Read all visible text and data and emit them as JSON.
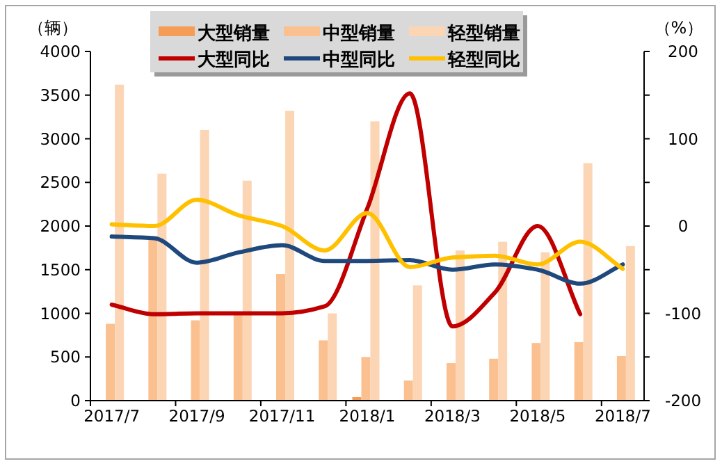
{
  "chart_data": {
    "type": "bar",
    "ylabel": "（辆）",
    "y2label": "（%）",
    "categories": [
      "2017/7",
      null,
      "2017/9",
      null,
      "2017/11",
      null,
      "2018/1",
      null,
      "2018/3",
      null,
      "2018/5",
      null,
      "2018/7"
    ],
    "ylim": [
      0,
      4000
    ],
    "yticks": [
      0,
      500,
      1000,
      1500,
      2000,
      2500,
      3000,
      3500,
      4000
    ],
    "y2lim": [
      -200,
      200
    ],
    "y2ticks": [
      -200,
      {
        "value": -150,
        "label": null
      },
      -100,
      {
        "value": -50,
        "label": null
      },
      0,
      {
        "value": 50,
        "label": null
      },
      100,
      {
        "value": 150,
        "label": null
      },
      200
    ],
    "legend": "top",
    "series": [
      {
        "name": "大型销量",
        "color": "#f59d56",
        "values": [
          0,
          0,
          0,
          0,
          0,
          0,
          40,
          0,
          0,
          0,
          0,
          0,
          0
        ]
      },
      {
        "name": "中型销量",
        "color": "#fac090",
        "values": [
          880,
          1850,
          920,
          1000,
          1450,
          690,
          500,
          230,
          430,
          480,
          660,
          670,
          510
        ]
      },
      {
        "name": "轻型销量",
        "color": "#fcd5b5",
        "values": [
          3620,
          2600,
          3100,
          2520,
          3320,
          1000,
          3200,
          1320,
          1720,
          1820,
          1700,
          2720,
          1770
        ]
      },
      {
        "name": "大型同比",
        "type": "line",
        "axis": "y2",
        "color": "#c00000",
        "values": [
          -90,
          -101,
          -100,
          -100,
          -100,
          -92,
          20,
          152,
          -115,
          -76,
          0,
          -101,
          null
        ]
      },
      {
        "name": "中型同比",
        "type": "line",
        "axis": "y2",
        "color": "#1f497d",
        "values": [
          -12,
          -14,
          -42,
          -30,
          -22,
          -40,
          -40,
          -39,
          -50,
          -44,
          -50,
          -66,
          -44
        ]
      },
      {
        "name": "轻型同比",
        "type": "line",
        "axis": "y2",
        "color": "#ffc000",
        "values": [
          2,
          0,
          30,
          12,
          0,
          -28,
          15,
          -47,
          -36,
          -34,
          -44,
          -18,
          -49
        ]
      }
    ]
  }
}
